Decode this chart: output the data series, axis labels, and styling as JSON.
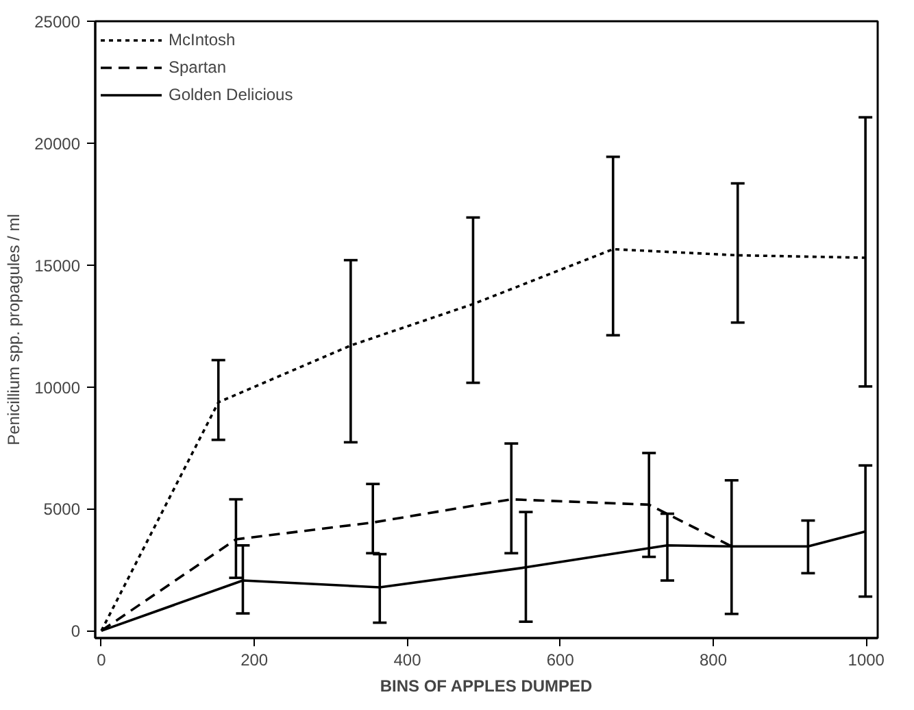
{
  "chart_data": {
    "type": "line",
    "xlabel": "BINS OF APPLES DUMPED",
    "ylabel": "Penicillium spp. propagules / ml",
    "xlim": [
      -8,
      1015
    ],
    "ylim": [
      -300,
      25000
    ],
    "xticks": [
      0,
      200,
      400,
      600,
      800,
      1000
    ],
    "yticks": [
      0,
      5000,
      10000,
      15000,
      20000,
      25000
    ],
    "grid": false,
    "legend": "top left",
    "marker": "none",
    "series": [
      {
        "name": "McIntosh",
        "color": "#000000",
        "line_style": "dotted",
        "x": [
          0,
          153,
          326,
          486,
          669,
          832,
          999
        ],
        "values": [
          0,
          9370,
          11700,
          13400,
          15650,
          15400,
          15300
        ],
        "errors": [
          null,
          [
            7830,
            11100
          ],
          [
            7730,
            15200
          ],
          [
            10170,
            16950
          ],
          [
            12120,
            19440
          ],
          [
            12640,
            18350
          ],
          [
            10020,
            21060
          ]
        ]
      },
      {
        "name": "Spartan",
        "color": "#000000",
        "line_style": "dashed",
        "x": [
          0,
          176,
          355,
          536,
          716,
          824
        ],
        "values": [
          0,
          3750,
          4440,
          5390,
          5170,
          3460
        ],
        "errors": [
          null,
          [
            2170,
            5390
          ],
          [
            3180,
            6020
          ],
          [
            3180,
            7680
          ],
          [
            3030,
            7290
          ],
          null
        ]
      },
      {
        "name": "Golden Delicious",
        "color": "#000000",
        "line_style": "solid",
        "x": [
          0,
          185,
          364,
          555,
          740,
          824,
          924,
          999
        ],
        "values": [
          0,
          2060,
          1780,
          2600,
          3500,
          3460,
          3460,
          4070
        ],
        "errors": [
          null,
          [
            710,
            3500
          ],
          [
            330,
            3140
          ],
          [
            370,
            4870
          ],
          [
            2060,
            4800
          ],
          [
            690,
            6170
          ],
          [
            2360,
            4520
          ],
          [
            1400,
            6780
          ]
        ]
      }
    ]
  }
}
